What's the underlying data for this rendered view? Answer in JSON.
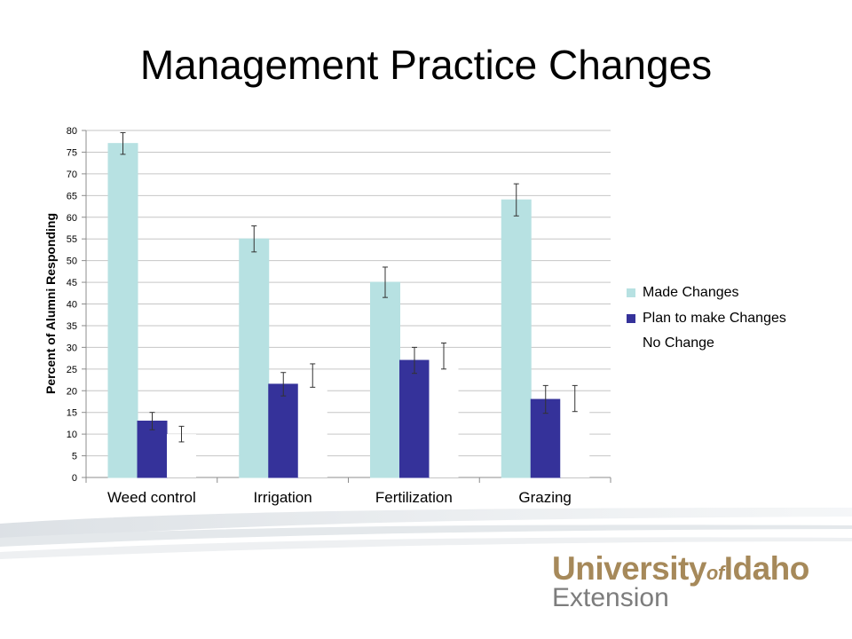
{
  "slide": {
    "title": "Management Practice Changes"
  },
  "chart_data": {
    "type": "bar",
    "title": "",
    "xlabel": "",
    "ylabel": "Percent of Alumni Responding",
    "ylim": [
      0,
      80
    ],
    "yticks": [
      0,
      5,
      10,
      15,
      20,
      25,
      30,
      35,
      40,
      45,
      50,
      55,
      60,
      65,
      70,
      75,
      80
    ],
    "grid": true,
    "legend_position": "right",
    "categories": [
      "Weed control",
      "Irrigation",
      "Fertilization",
      "Grazing"
    ],
    "series": [
      {
        "name": "Made Changes",
        "color": "#b7e1e2",
        "values": [
          77,
          55,
          45,
          64
        ],
        "error": [
          2.5,
          3,
          3.5,
          3.7
        ]
      },
      {
        "name": "Plan to make Changes",
        "color": "#35329a",
        "values": [
          13,
          21.5,
          27,
          18
        ],
        "error": [
          2,
          2.7,
          3,
          3.2
        ]
      },
      {
        "name": "No Change",
        "color": "#ffffff",
        "values": [
          10,
          23.5,
          28,
          18.2
        ],
        "error": [
          1.8,
          2.7,
          3,
          3
        ]
      }
    ]
  },
  "logo": {
    "line1_a": "University",
    "line1_of": "of",
    "line1_b": "Idaho",
    "line2": "Extension",
    "primary_color": "#a6895a",
    "secondary_color": "#7d7d7d"
  }
}
